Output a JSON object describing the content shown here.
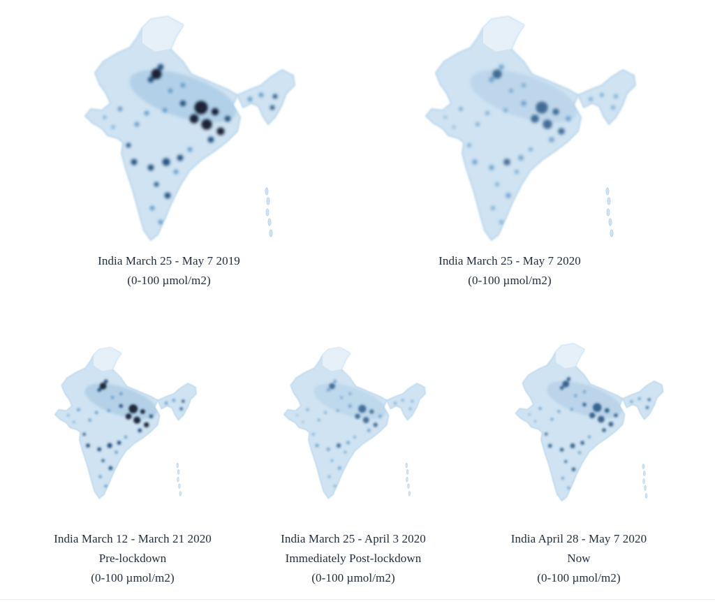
{
  "colors": {
    "land": "#cfe3f2",
    "land_edge": "#b9d6ec",
    "mid_blue": "#5f97c6",
    "deep_blue": "#25527f",
    "hotspot": "#1b2438",
    "caption_text": "#1f2b3a"
  },
  "maps": [
    {
      "id": "map-2019",
      "title": "India March 25 - May 7 2019",
      "subtitle": "",
      "units": "(0-100 µmol/m2)",
      "intensity": 1.0
    },
    {
      "id": "map-2020",
      "title": "India March 25 - May 7 2020",
      "subtitle": "",
      "units": "(0-100 µmol/m2)",
      "intensity": 0.65
    },
    {
      "id": "map-prelockdown",
      "title": "India March 12 - March 21 2020",
      "subtitle": "Pre-lockdown",
      "units": "(0-100 µmol/m2)",
      "intensity": 0.95
    },
    {
      "id": "map-postlockdown",
      "title": "India March 25 - April 3 2020",
      "subtitle": "Immediately Post-lockdown",
      "units": "(0-100 µmol/m2)",
      "intensity": 0.6
    },
    {
      "id": "map-now",
      "title": "India April 28 - May 7 2020",
      "subtitle": "Now",
      "units": "(0-100 µmol/m2)",
      "intensity": 0.75
    }
  ]
}
